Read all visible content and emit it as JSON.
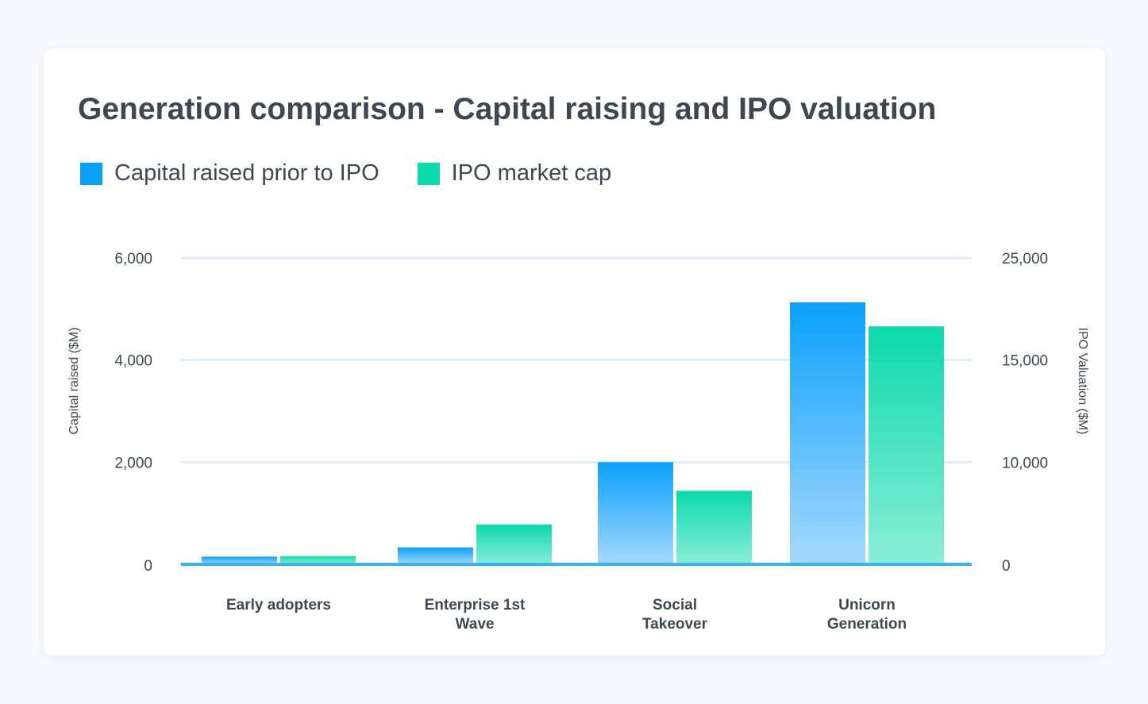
{
  "chart_data": {
    "type": "bar",
    "title": "Generation comparison - Capital raising and IPO valuation",
    "categories": [
      [
        "Early adopters"
      ],
      [
        "Enterprise 1st",
        "Wave"
      ],
      [
        "Social",
        "Takeover"
      ],
      [
        "Unicorn",
        "Generation"
      ]
    ],
    "series": [
      {
        "name": "Capital raised prior to IPO",
        "axis": "left",
        "color": "#0aa0fb",
        "values": [
          150,
          330,
          2000,
          5130
        ]
      },
      {
        "name": "IPO market cap",
        "axis": "right",
        "color": "#0cd9ac",
        "values": [
          800,
          3900,
          7200,
          18300
        ]
      }
    ],
    "y_left": {
      "label": "Capital raised ($M)",
      "ticks": [
        0,
        2000,
        4000,
        6000
      ],
      "tick_labels": [
        "0",
        "2,000",
        "4,000",
        "6,000"
      ],
      "ylim": [
        0,
        6000
      ]
    },
    "y_right": {
      "label": "IPO Valuation ($M)",
      "ticks": [
        0,
        10000,
        15000,
        25000
      ],
      "tick_labels": [
        "0",
        "10,000",
        "15,000",
        "25,000"
      ]
    },
    "grid": true,
    "legend": "top-left"
  }
}
